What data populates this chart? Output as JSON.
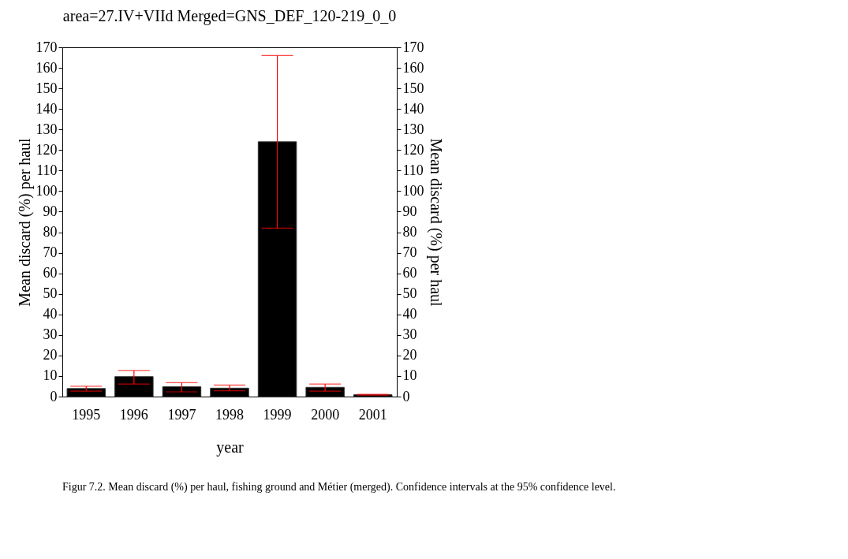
{
  "chart_data": {
    "type": "bar",
    "title": "area=27.IV+VIId Merged=GNS_DEF_120-219_0_0",
    "categories": [
      "1995",
      "1996",
      "1997",
      "1998",
      "1999",
      "2000",
      "2001"
    ],
    "values": [
      3.9,
      9.7,
      4.8,
      4.1,
      124,
      4.5,
      0.9
    ],
    "color": "#000000",
    "errors": [
      [
        2.6,
        5.0
      ],
      [
        6.1,
        12.7
      ],
      [
        2.3,
        6.8
      ],
      [
        2.8,
        5.6
      ],
      [
        82,
        166
      ],
      [
        2.6,
        6.1
      ],
      [
        0.7,
        1.1
      ]
    ],
    "xlabel": "year",
    "ylabel": "Mean discard (%) per haul",
    "y2label": "Mean discard (%) per haul",
    "ylim": [
      0,
      170
    ],
    "yticks": [
      0,
      10,
      20,
      30,
      40,
      50,
      60,
      70,
      80,
      90,
      100,
      110,
      120,
      130,
      140,
      150,
      160,
      170
    ],
    "y2lim": [
      0,
      170
    ],
    "y2ticks": [
      0,
      10,
      20,
      30,
      40,
      50,
      60,
      70,
      80,
      90,
      100,
      110,
      120,
      130,
      140,
      150,
      160,
      170
    ],
    "grid": false,
    "annotations": [
      "Figur 7.2. Mean discard (%) per haul, fishing ground and Métier (merged). Confidence intervals at the 95% confidence level."
    ]
  }
}
